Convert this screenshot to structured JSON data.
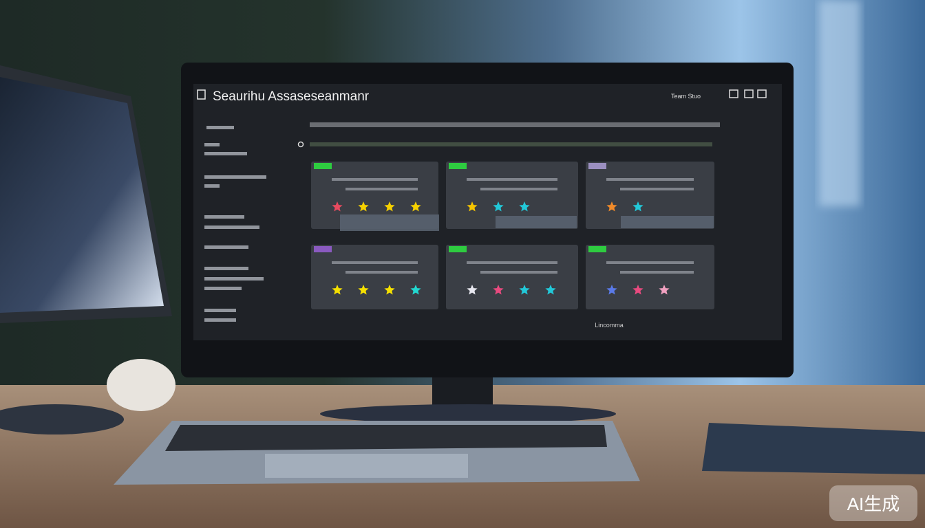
{
  "screen": {
    "title": "Seaurihu Assaseseanmanr",
    "header_right": "Team Stuo",
    "footer": "Lincomma"
  },
  "watermark": "AI生成"
}
